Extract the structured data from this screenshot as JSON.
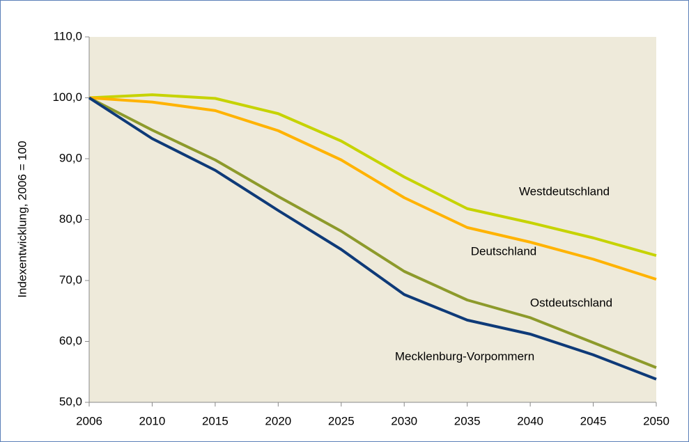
{
  "chart_data": {
    "type": "line",
    "y_label": "Indexentwicklung, 2006 = 100",
    "categories": [
      "2006",
      "2010",
      "2015",
      "2020",
      "2025",
      "2030",
      "2035",
      "2040",
      "2045",
      "2050"
    ],
    "series": [
      {
        "name": "Westdeutschland",
        "color": "#c6d300",
        "values": [
          100,
          100.5,
          99.9,
          97.4,
          92.9,
          87.0,
          81.8,
          79.5,
          77.0,
          74.1
        ]
      },
      {
        "name": "Deutschland",
        "color": "#ffb300",
        "values": [
          100,
          99.3,
          97.9,
          94.6,
          89.8,
          83.6,
          78.7,
          76.3,
          73.5,
          70.2
        ]
      },
      {
        "name": "Ostdeutschland",
        "color": "#8d9a2b",
        "values": [
          100,
          94.7,
          89.8,
          83.8,
          78.1,
          71.5,
          66.8,
          63.9,
          59.8,
          55.7
        ]
      },
      {
        "name": "Mecklenburg-Vorpommern",
        "color": "#0e3a78",
        "values": [
          100,
          93.3,
          88.1,
          81.5,
          75.1,
          67.7,
          63.5,
          61.2,
          57.8,
          53.8
        ]
      }
    ],
    "ylim": [
      50,
      110
    ],
    "yticks": [
      {
        "value": 50,
        "label": "50,0"
      },
      {
        "value": 60,
        "label": "60,0"
      },
      {
        "value": 70,
        "label": "70,0"
      },
      {
        "value": 80,
        "label": "80,0"
      },
      {
        "value": 90,
        "label": "90,0"
      },
      {
        "value": 100,
        "label": "100,0"
      },
      {
        "value": 110,
        "label": "110,0"
      }
    ],
    "grid": false
  }
}
